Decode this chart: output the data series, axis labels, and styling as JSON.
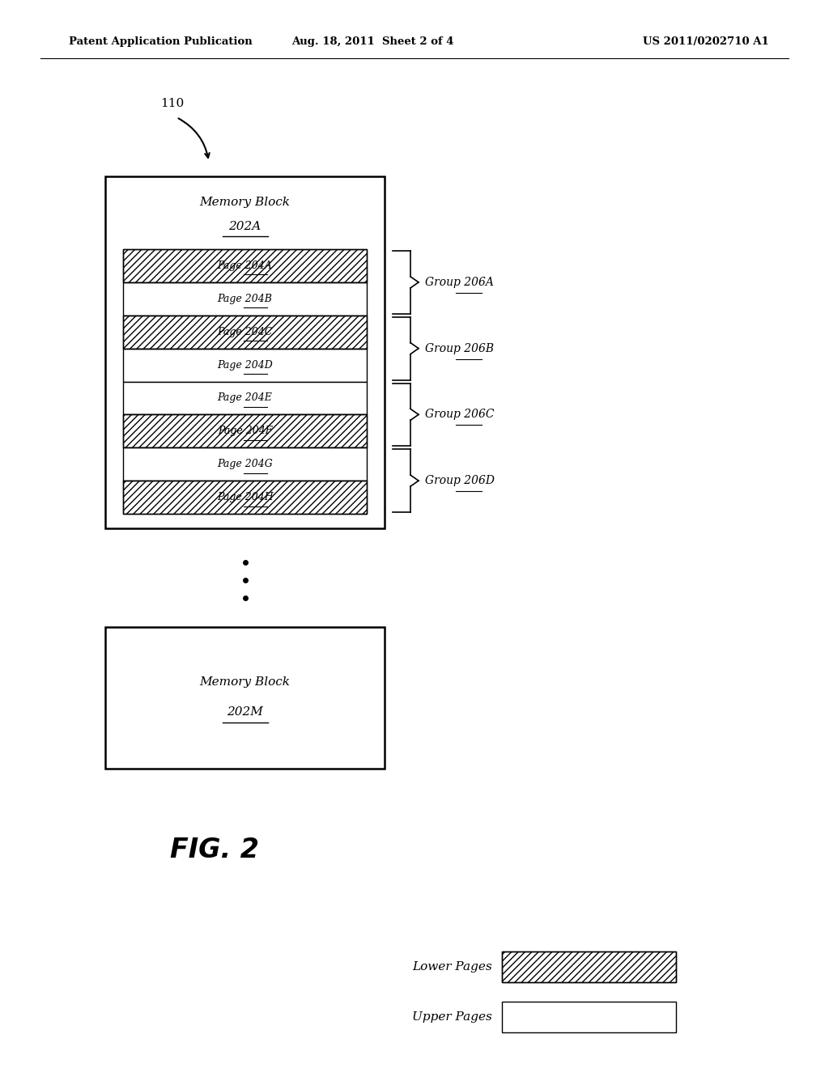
{
  "header_left": "Patent Application Publication",
  "header_center": "Aug. 18, 2011  Sheet 2 of 4",
  "header_right": "US 2011/0202710 A1",
  "label_110": "110",
  "block_A_title_line1": "Memory Block",
  "block_A_title_line2": "202A",
  "pages": [
    {
      "label": "Page 204A",
      "hatched": true
    },
    {
      "label": "Page 204B",
      "hatched": false
    },
    {
      "label": "Page 204C",
      "hatched": true
    },
    {
      "label": "Page 204D",
      "hatched": false
    },
    {
      "label": "Page 204E",
      "hatched": false
    },
    {
      "label": "Page 204F",
      "hatched": true
    },
    {
      "label": "Page 204G",
      "hatched": false
    },
    {
      "label": "Page 204H",
      "hatched": true
    }
  ],
  "groups": [
    {
      "label": "Group 206A",
      "pages": [
        0,
        1
      ]
    },
    {
      "label": "Group 206B",
      "pages": [
        2,
        3
      ]
    },
    {
      "label": "Group 206C",
      "pages": [
        4,
        5
      ]
    },
    {
      "label": "Group 206D",
      "pages": [
        6,
        7
      ]
    }
  ],
  "block_M_title_line1": "Memory Block",
  "block_M_title_line2": "202M",
  "fig_label": "FIG. 2",
  "legend_lower": "Lower Pages",
  "legend_upper": "Upper Pages",
  "bg_color": "#ffffff",
  "text_color": "#000000"
}
